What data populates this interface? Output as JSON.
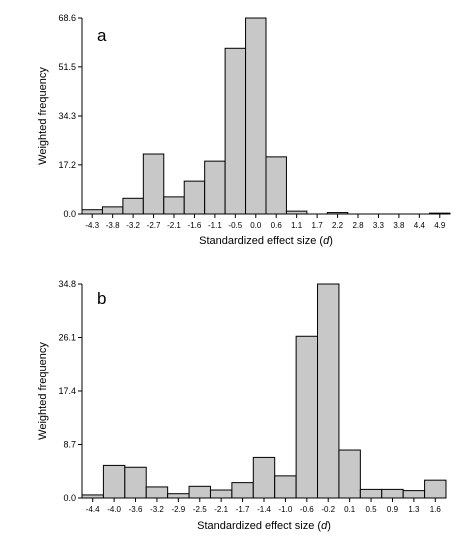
{
  "colors": {
    "bar_fill": "#c8c8c8",
    "bar_stroke": "#000000",
    "axis": "#000000",
    "text": "#000000"
  },
  "chart_data": [
    {
      "type": "bar",
      "panel_label": "a",
      "xlabel": "Standardized effect size (",
      "xlabel_var": "d",
      "xlabel_suffix": ")",
      "ylabel": "Weighted frequency",
      "ylim": [
        0,
        68.6
      ],
      "yticks": [
        "0.0",
        "17.2",
        "34.3",
        "51.5",
        "68.6"
      ],
      "yticks_values": [
        0,
        17.2,
        34.3,
        51.5,
        68.6
      ],
      "categories": [
        "-4.3",
        "-3.8",
        "-3.2",
        "-2.7",
        "-2.1",
        "-1.6",
        "-1.1",
        "-0.5",
        "0.0",
        "0.6",
        "1.1",
        "1.7",
        "2.2",
        "2.8",
        "3.3",
        "3.8",
        "4.4",
        "4.9"
      ],
      "values": [
        1.5,
        2.5,
        5.5,
        21.0,
        6.0,
        11.5,
        18.5,
        58.0,
        68.6,
        20.0,
        1.0,
        0,
        0.5,
        0,
        0,
        0,
        0,
        0.3
      ],
      "grid": false,
      "legend": "none"
    },
    {
      "type": "bar",
      "panel_label": "b",
      "xlabel": "Standardized effect size (",
      "xlabel_var": "d",
      "xlabel_suffix": ")",
      "ylabel": "Weighted frequency",
      "ylim": [
        0,
        34.8
      ],
      "yticks": [
        "0.0",
        "8.7",
        "17.4",
        "26.1",
        "34.8"
      ],
      "yticks_values": [
        0,
        8.7,
        17.4,
        26.1,
        34.8
      ],
      "categories": [
        "-4.4",
        "-4.0",
        "-3.6",
        "-3.2",
        "-2.9",
        "-2.5",
        "-2.1",
        "-1.7",
        "-1.4",
        "-1.0",
        "-0.6",
        "-0.2",
        "0.1",
        "0.5",
        "0.9",
        "1.3",
        "1.6"
      ],
      "values": [
        0.5,
        5.3,
        5.0,
        1.8,
        0.7,
        1.9,
        1.3,
        2.5,
        6.6,
        3.6,
        26.3,
        34.8,
        7.8,
        1.4,
        1.4,
        1.2,
        2.9
      ],
      "grid": false,
      "legend": "none"
    }
  ]
}
